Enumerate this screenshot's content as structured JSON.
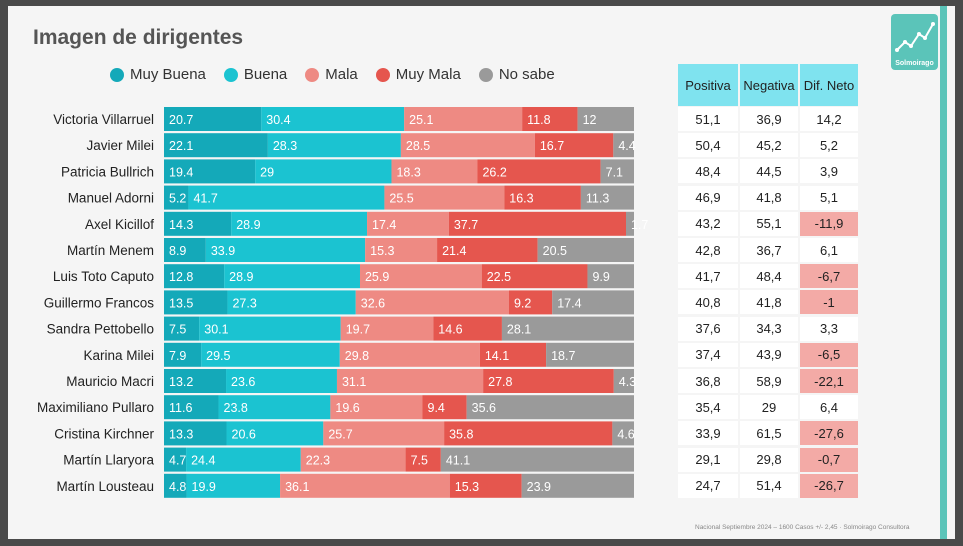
{
  "title": "Imagen de dirigentes",
  "source": "Nacional Septiembre 2024 – 1600 Casos +/- 2,45 · Solmoirago Consultora",
  "logo_text": "Solmoirago",
  "colors": {
    "muy_buena": "#14a9b9",
    "buena": "#1bc3d1",
    "mala": "#ee8a83",
    "muy_mala": "#e5564e",
    "no_sabe": "#9a9a9a",
    "table_header": "#7fe3ef",
    "neg_highlight": "#f3aaa6"
  },
  "chart_data": {
    "type": "bar",
    "stacked": true,
    "orientation": "horizontal",
    "title": "Imagen de dirigentes",
    "legend_position": "top",
    "categories": [
      "Victoria Villarruel",
      "Javier Milei",
      "Patricia Bullrich",
      "Manuel Adorni",
      "Axel Kicillof",
      "Martín Menem",
      "Luis Toto Caputo",
      "Guillermo Francos",
      "Sandra Pettobello",
      "Karina Milei",
      "Mauricio Macri",
      "Maximiliano Pullaro",
      "Cristina Kirchner",
      "Martín Llaryora",
      "Martín Lousteau"
    ],
    "series": [
      {
        "name": "Muy Buena",
        "values": [
          20.7,
          22.1,
          19.4,
          5.2,
          14.3,
          8.9,
          12.8,
          13.5,
          7.5,
          7.9,
          13.2,
          11.6,
          13.3,
          4.7,
          4.8
        ]
      },
      {
        "name": "Buena",
        "values": [
          30.4,
          28.3,
          29,
          41.7,
          28.9,
          33.9,
          28.9,
          27.3,
          30.1,
          29.5,
          23.6,
          23.8,
          20.6,
          24.4,
          19.9
        ]
      },
      {
        "name": "Mala",
        "values": [
          25.1,
          28.5,
          18.3,
          25.5,
          17.4,
          15.3,
          25.9,
          32.6,
          19.7,
          29.8,
          31.1,
          19.6,
          25.7,
          22.3,
          36.1
        ]
      },
      {
        "name": "Muy Mala",
        "values": [
          11.8,
          16.7,
          26.2,
          16.3,
          37.7,
          21.4,
          22.5,
          9.2,
          14.6,
          14.1,
          27.8,
          9.4,
          35.8,
          7.5,
          15.3
        ]
      },
      {
        "name": "No sabe",
        "values": [
          12,
          4.4,
          7.1,
          11.3,
          1.7,
          20.5,
          9.9,
          17.4,
          28.1,
          18.7,
          4.3,
          35.6,
          4.6,
          41.1,
          23.9
        ]
      }
    ]
  },
  "table": {
    "headers": [
      "Positiva",
      "Negativa",
      "Dif. Neto"
    ],
    "rows": [
      [
        "51,1",
        "36,9",
        "14,2"
      ],
      [
        "50,4",
        "45,2",
        "5,2"
      ],
      [
        "48,4",
        "44,5",
        "3,9"
      ],
      [
        "46,9",
        "41,8",
        "5,1"
      ],
      [
        "43,2",
        "55,1",
        "-11,9"
      ],
      [
        "42,8",
        "36,7",
        "6,1"
      ],
      [
        "41,7",
        "48,4",
        "-6,7"
      ],
      [
        "40,8",
        "41,8",
        "-1"
      ],
      [
        "37,6",
        "34,3",
        "3,3"
      ],
      [
        "37,4",
        "43,9",
        "-6,5"
      ],
      [
        "36,8",
        "58,9",
        "-22,1"
      ],
      [
        "35,4",
        "29",
        "6,4"
      ],
      [
        "33,9",
        "61,5",
        "-27,6"
      ],
      [
        "29,1",
        "29,8",
        "-0,7"
      ],
      [
        "24,7",
        "51,4",
        "-26,7"
      ]
    ]
  }
}
